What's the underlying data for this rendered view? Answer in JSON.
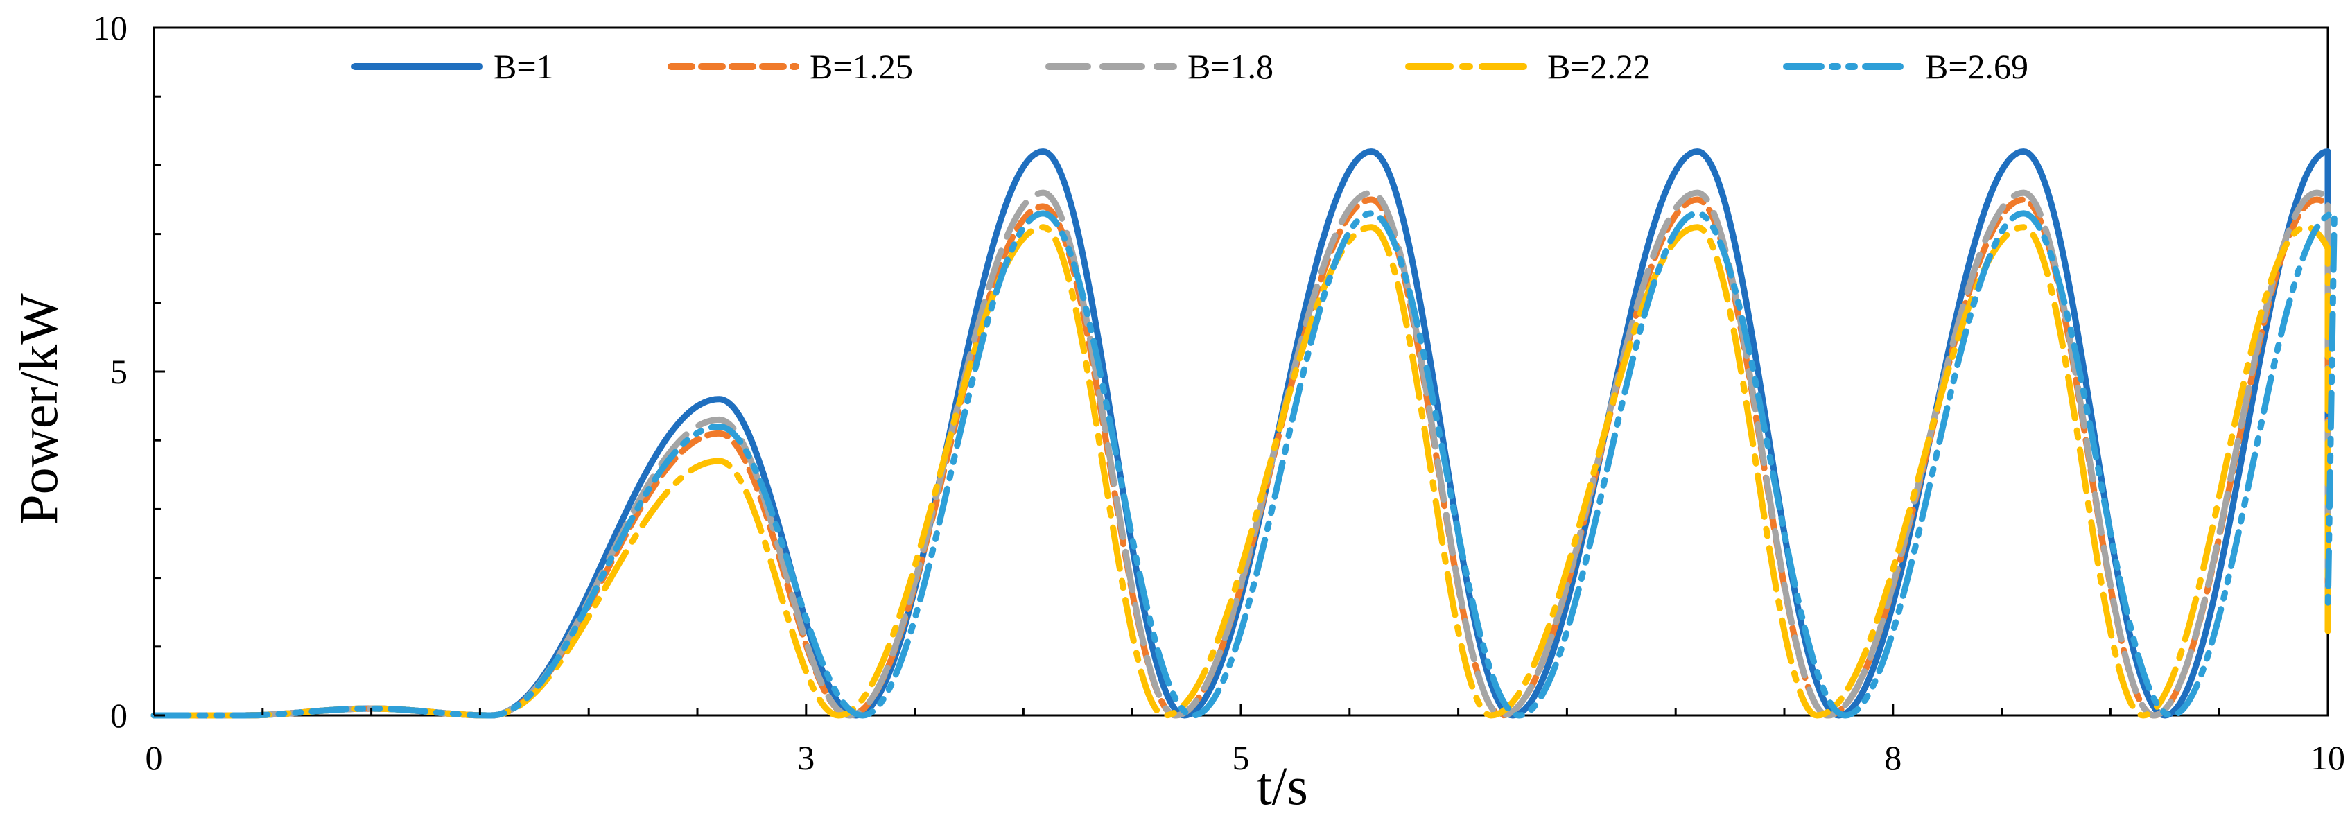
{
  "chart_data": {
    "type": "line",
    "title": "",
    "xlabel": "t/s",
    "ylabel": "Power/kW",
    "xlim": [
      0,
      10
    ],
    "ylim": [
      0,
      10
    ],
    "x_ticks": [
      0,
      3,
      5,
      8,
      10
    ],
    "x_tick_labels": [
      "0",
      "3",
      "5",
      "8",
      "10"
    ],
    "y_ticks": [
      0,
      5,
      10
    ],
    "y_tick_labels": [
      "0",
      "5",
      "10"
    ],
    "grid": false,
    "legend_position": "top",
    "series": [
      {
        "name": "B=1",
        "color": "#1F6FBF",
        "style": "solid",
        "peaks": [
          [
            1.0,
            0.1
          ],
          [
            2.6,
            4.6
          ],
          [
            4.09,
            8.2
          ],
          [
            5.6,
            8.2
          ],
          [
            7.1,
            8.2
          ],
          [
            8.6,
            8.2
          ],
          [
            10.0,
            8.2
          ]
        ],
        "troughs": [
          [
            1.55,
            0.0
          ],
          [
            3.23,
            0.0
          ],
          [
            4.74,
            0.0
          ],
          [
            6.25,
            0.0
          ],
          [
            7.75,
            0.0
          ],
          [
            9.25,
            0.0
          ]
        ],
        "end": [
          10.0,
          2.0
        ]
      },
      {
        "name": "B=1.25",
        "color": "#F07A2A",
        "style": "dash",
        "peaks": [
          [
            1.0,
            0.1
          ],
          [
            2.6,
            4.1
          ],
          [
            4.09,
            7.4
          ],
          [
            5.6,
            7.5
          ],
          [
            7.1,
            7.5
          ],
          [
            8.6,
            7.5
          ],
          [
            10.0,
            7.5
          ]
        ],
        "troughs": [
          [
            1.55,
            0.0
          ],
          [
            3.2,
            0.0
          ],
          [
            4.7,
            0.0
          ],
          [
            6.2,
            0.0
          ],
          [
            7.7,
            0.0
          ],
          [
            9.2,
            0.0
          ]
        ],
        "end": [
          10.0,
          1.7
        ]
      },
      {
        "name": "B=1.8",
        "color": "#A5A5A5",
        "style": "longdash",
        "peaks": [
          [
            1.0,
            0.1
          ],
          [
            2.6,
            4.3
          ],
          [
            4.09,
            7.6
          ],
          [
            5.6,
            7.6
          ],
          [
            7.1,
            7.6
          ],
          [
            8.6,
            7.6
          ],
          [
            10.0,
            7.6
          ]
        ],
        "troughs": [
          [
            1.55,
            0.0
          ],
          [
            3.2,
            0.0
          ],
          [
            4.7,
            0.0
          ],
          [
            6.2,
            0.0
          ],
          [
            7.7,
            0.0
          ],
          [
            9.2,
            0.0
          ]
        ],
        "end": [
          10.0,
          1.8
        ]
      },
      {
        "name": "B=2.22",
        "color": "#FFC000",
        "style": "dashdot",
        "peaks": [
          [
            1.0,
            0.1
          ],
          [
            2.6,
            3.7
          ],
          [
            4.09,
            7.1
          ],
          [
            5.6,
            7.1
          ],
          [
            7.1,
            7.1
          ],
          [
            8.6,
            7.1
          ],
          [
            10.0,
            7.1
          ]
        ],
        "troughs": [
          [
            1.55,
            0.0
          ],
          [
            3.15,
            0.0
          ],
          [
            4.65,
            0.0
          ],
          [
            6.15,
            0.0
          ],
          [
            7.65,
            0.0
          ],
          [
            9.15,
            0.0
          ]
        ],
        "end": [
          10.0,
          1.1
        ]
      },
      {
        "name": "B=2.69",
        "color": "#2E9FD8",
        "style": "dashdotdot",
        "peaks": [
          [
            1.0,
            0.1
          ],
          [
            2.6,
            4.2
          ],
          [
            4.09,
            7.3
          ],
          [
            5.6,
            7.3
          ],
          [
            7.1,
            7.3
          ],
          [
            8.6,
            7.3
          ],
          [
            10.0,
            7.3
          ]
        ],
        "troughs": [
          [
            1.55,
            0.0
          ],
          [
            3.26,
            0.0
          ],
          [
            4.78,
            0.0
          ],
          [
            6.28,
            0.0
          ],
          [
            7.78,
            0.0
          ],
          [
            9.28,
            0.0
          ]
        ],
        "end": [
          10.0,
          1.5
        ]
      }
    ]
  }
}
